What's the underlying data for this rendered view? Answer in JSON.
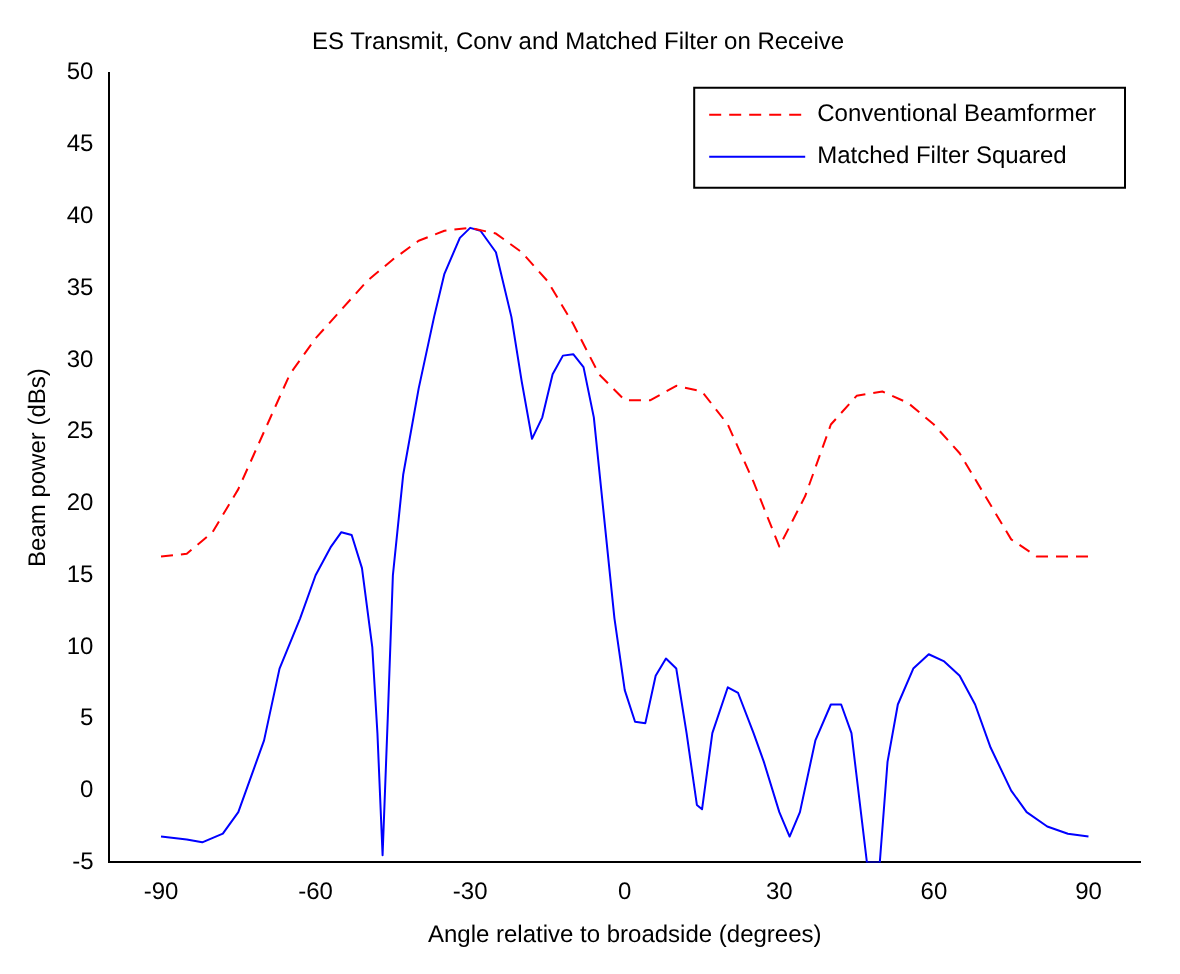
{
  "chart_data": {
    "type": "line",
    "title": "ES Transmit, Conv and Matched Filter on Receive",
    "xlabel": "Angle relative to broadside (degrees)",
    "ylabel": "Beam power (dBs)",
    "xlim": [
      -100,
      100
    ],
    "xticks": [
      -90,
      -60,
      -30,
      0,
      30,
      60,
      90
    ],
    "ylim": [
      -5,
      50
    ],
    "yticks": [
      -5,
      0,
      5,
      10,
      15,
      20,
      25,
      30,
      35,
      40,
      45,
      50
    ],
    "grid": false,
    "legend": "top right",
    "marker": "none",
    "series": [
      {
        "name": "Conventional Beamformer",
        "color": "#ff0000",
        "line_style": "dashed",
        "x": [
          -90,
          -85,
          -80,
          -75,
          -70,
          -65,
          -60,
          -55,
          -50,
          -45,
          -40,
          -35,
          -30,
          -25,
          -20,
          -15,
          -10,
          -5,
          0,
          5,
          10,
          15,
          20,
          25,
          30,
          35,
          40,
          45,
          50,
          55,
          60,
          65,
          70,
          75,
          80,
          85,
          90
        ],
        "values": [
          16.3,
          16.5,
          18,
          21,
          25,
          29,
          31.5,
          33.5,
          35.5,
          37,
          38.3,
          39,
          39.2,
          38.8,
          37.5,
          35.5,
          32.5,
          29,
          27.2,
          27.2,
          28.2,
          27.8,
          25.5,
          21.5,
          17,
          20.5,
          25.5,
          27.5,
          27.8,
          27,
          25.5,
          23.5,
          20.5,
          17.5,
          16.3,
          16.3,
          16.3
        ]
      },
      {
        "name": "Matched Filter Squared",
        "color": "#0000ff",
        "line_style": "solid",
        "x": [
          -90,
          -85,
          -82,
          -78,
          -75,
          -72,
          -70,
          -67,
          -63,
          -60,
          -57,
          -55,
          -53,
          -51,
          -49,
          -48,
          -47,
          -46,
          -45,
          -43,
          -40,
          -37,
          -35,
          -32,
          -30,
          -28,
          -25,
          -22,
          -20,
          -18,
          -16,
          -14,
          -12,
          -10,
          -8,
          -6,
          -4,
          -2,
          0,
          2,
          4,
          6,
          8,
          10,
          12,
          14,
          15,
          17,
          20,
          22,
          25,
          27,
          30,
          32,
          34,
          37,
          40,
          42,
          44,
          46,
          47,
          49.5,
          51,
          53,
          56,
          59,
          62,
          65,
          68,
          71,
          75,
          78,
          82,
          86,
          90
        ],
        "values": [
          -3.2,
          -3.4,
          -3.6,
          -3,
          -1.5,
          1.5,
          3.5,
          8.5,
          12,
          15,
          17,
          18,
          17.8,
          15.5,
          10,
          4,
          -4.5,
          5,
          15,
          22,
          28,
          33,
          36,
          38.5,
          39.2,
          39,
          37.5,
          33,
          28.5,
          24.5,
          26,
          29,
          30.3,
          30.4,
          29.5,
          26,
          19,
          12,
          7,
          4.8,
          4.7,
          8,
          9.2,
          8.5,
          4,
          -1,
          -1.3,
          4,
          7.2,
          6.8,
          4,
          2,
          -1.5,
          -3.2,
          -1.5,
          3.5,
          6,
          6,
          4,
          -2,
          -5,
          -5,
          2,
          6,
          8.5,
          9.5,
          9,
          8,
          6,
          3,
          0,
          -1.5,
          -2.5,
          -3,
          -3.2
        ]
      }
    ]
  }
}
